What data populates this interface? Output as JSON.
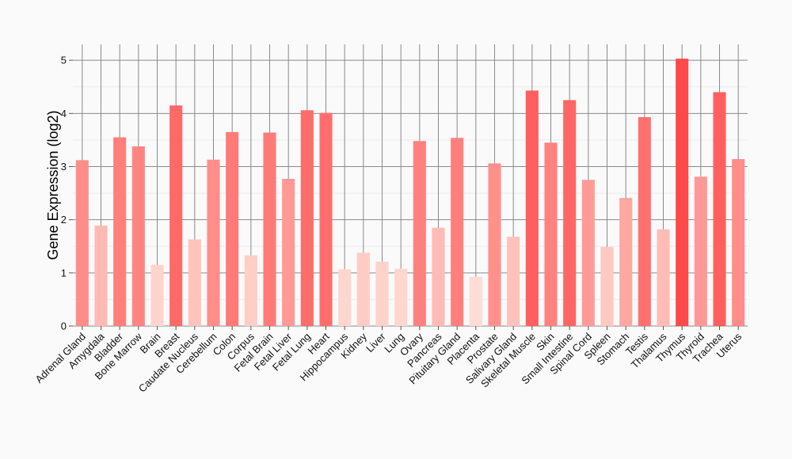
{
  "chart_data": {
    "type": "bar",
    "ylabel": "Gene Expression (log2)",
    "xlabel": "",
    "title": "",
    "ylim": [
      0,
      5.3
    ],
    "yticks": [
      0,
      1,
      2,
      3,
      4,
      5
    ],
    "grid": true,
    "color_low": "#ffdcd4",
    "color_high": "#ff4a4a",
    "categories": [
      "Adrenal Gland",
      "Amygdala",
      "Bladder",
      "Bone Marrow",
      "Brain",
      "Breast",
      "Caudate Nucleus",
      "Cerebellum",
      "Colon",
      "Corpus",
      "Fetal Brain",
      "Fetal Liver",
      "Fetal Lung",
      "Heart",
      "Hippocampus",
      "Kidney",
      "Liver",
      "Lung",
      "Ovary",
      "Pancreas",
      "Pituitary Gland",
      "Placenta",
      "Prostate",
      "Salivary Gland",
      "Skeletal Muscle",
      "Skin",
      "Small Intestine",
      "Spinal Cord",
      "Spleen",
      "Stomach",
      "Testis",
      "Thalamus",
      "Thymus",
      "Thyroid",
      "Trachea",
      "Uterus"
    ],
    "values": [
      3.12,
      1.89,
      3.55,
      3.38,
      1.15,
      4.15,
      1.63,
      3.13,
      3.65,
      1.33,
      3.64,
      2.77,
      4.06,
      4.01,
      1.07,
      1.38,
      1.21,
      1.08,
      3.48,
      1.85,
      3.54,
      0.93,
      3.06,
      1.68,
      4.43,
      3.45,
      4.25,
      2.75,
      1.49,
      2.41,
      3.93,
      1.82,
      5.03,
      2.81,
      4.4,
      3.14
    ]
  }
}
